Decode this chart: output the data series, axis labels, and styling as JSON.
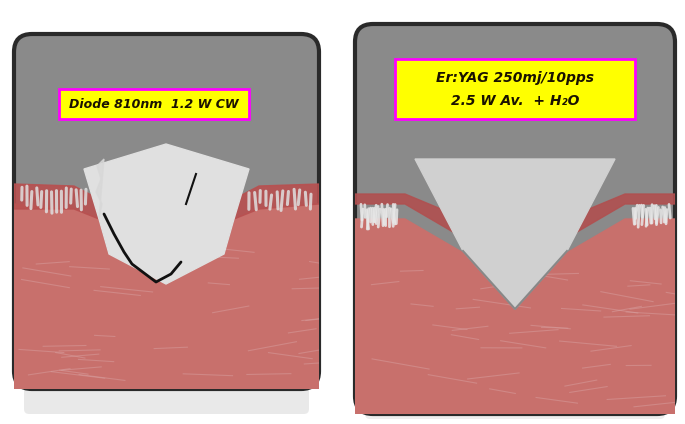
{
  "background_color": "#ffffff",
  "left_label": "Diode 810nm  1.2 W CW",
  "right_label_line1": "Er:YAG 250mj/10pps",
  "right_label_line2": "2.5 W Av.  + H₂O",
  "label_bg": "#ffff00",
  "label_border": "#ff00ff",
  "label_text_color": "#1a1200",
  "panel_border_color": "#2a2a2a",
  "panel_bg": "#888888",
  "tissue_pink": "#c97c78",
  "tissue_upper_dark": "#b85c58",
  "tissue_lower": "#d49090",
  "gray_bg": "#8a8a8a",
  "incision_white": "#e8e8e8",
  "reflection_color": "#e0e0e0"
}
